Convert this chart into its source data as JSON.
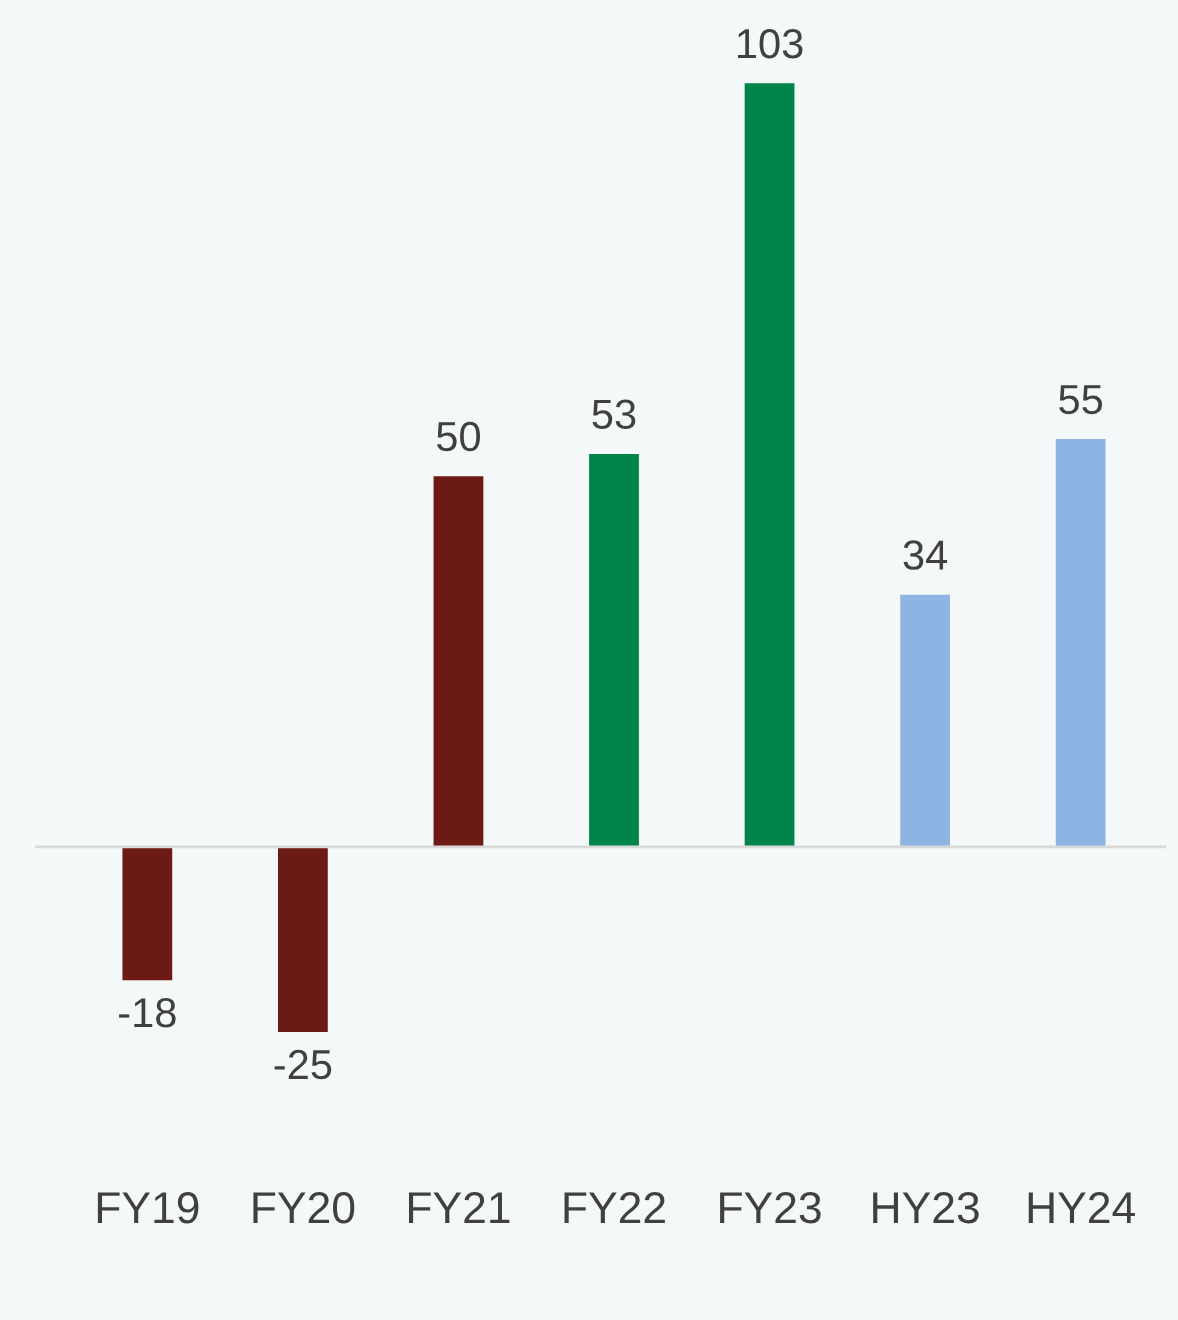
{
  "chart_data": {
    "type": "bar",
    "categories": [
      "FY19",
      "FY20",
      "FY21",
      "FY22",
      "FY23",
      "HY23",
      "HY24"
    ],
    "values": [
      -18,
      -25,
      50,
      53,
      103,
      34,
      55
    ],
    "colors": [
      "#6b1a14",
      "#6b1a14",
      "#6b1a14",
      "#00844a",
      "#00844a",
      "#8db4e2",
      "#8db4e2"
    ],
    "data_labels": true
  }
}
